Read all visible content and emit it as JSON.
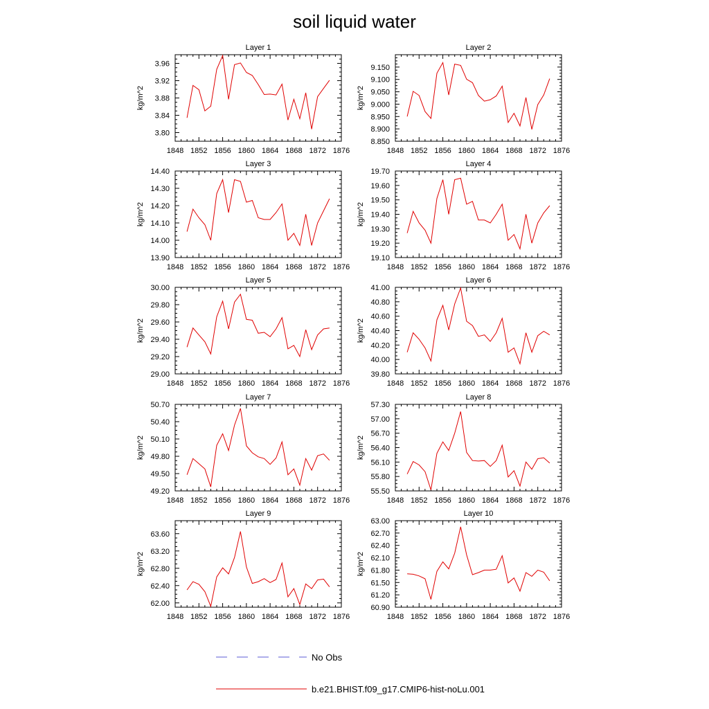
{
  "page": {
    "title": "soil liquid water"
  },
  "legend": {
    "placement": "bottom-center",
    "entries": [
      {
        "label": "No Obs",
        "color": "#5b5bd6",
        "style": "dashed"
      },
      {
        "label": "b.e21.BHIST.f09_g17.CMIP6-hist-noLu.001",
        "color": "#e00000",
        "style": "solid"
      }
    ]
  },
  "chart_data": [
    {
      "type": "line",
      "title": "Layer 1",
      "ylabel": "kg/m^2",
      "xlim": [
        1848,
        1876
      ],
      "xticks": [
        1848,
        1852,
        1856,
        1860,
        1864,
        1868,
        1872,
        1876
      ],
      "ylim": [
        3.78,
        3.98
      ],
      "yticks": [
        "3.80",
        "3.84",
        "3.88",
        "3.92",
        "3.96"
      ],
      "x": [
        1850,
        1851,
        1852,
        1853,
        1854,
        1855,
        1856,
        1857,
        1858,
        1859,
        1860,
        1861,
        1862,
        1863,
        1864,
        1865,
        1866,
        1867,
        1868,
        1869,
        1870,
        1871,
        1872,
        1873,
        1874
      ],
      "series": [
        {
          "values": [
            3.834,
            3.909,
            3.899,
            3.85,
            3.861,
            3.946,
            3.978,
            3.877,
            3.957,
            3.961,
            3.939,
            3.932,
            3.911,
            3.888,
            3.889,
            3.887,
            3.912,
            3.829,
            3.877,
            3.832,
            3.892,
            3.808,
            3.883,
            3.902,
            3.921
          ]
        }
      ]
    },
    {
      "type": "line",
      "title": "Layer 2",
      "ylabel": "kg/m^2",
      "xlim": [
        1848,
        1876
      ],
      "xticks": [
        1848,
        1852,
        1856,
        1860,
        1864,
        1868,
        1872,
        1876
      ],
      "ylim": [
        8.85,
        9.2
      ],
      "yticks": [
        "8.850",
        "8.900",
        "8.950",
        "9.000",
        "9.050",
        "9.100",
        "9.150"
      ],
      "x": [
        1850,
        1851,
        1852,
        1853,
        1854,
        1855,
        1856,
        1857,
        1858,
        1859,
        1860,
        1861,
        1862,
        1863,
        1864,
        1865,
        1866,
        1867,
        1868,
        1869,
        1870,
        1871,
        1872,
        1873,
        1874
      ],
      "series": [
        {
          "values": [
            8.95,
            9.052,
            9.035,
            8.97,
            8.942,
            9.125,
            9.168,
            9.037,
            9.162,
            9.157,
            9.101,
            9.087,
            9.035,
            9.012,
            9.018,
            9.033,
            9.073,
            8.926,
            8.963,
            8.912,
            9.027,
            8.898,
            8.998,
            9.037,
            9.103
          ]
        }
      ]
    },
    {
      "type": "line",
      "title": "Layer 3",
      "ylabel": "kg/m^2",
      "xlim": [
        1848,
        1876
      ],
      "xticks": [
        1848,
        1852,
        1856,
        1860,
        1864,
        1868,
        1872,
        1876
      ],
      "ylim": [
        13.9,
        14.4
      ],
      "yticks": [
        "13.90",
        "14.00",
        "14.10",
        "14.20",
        "14.30",
        "14.40"
      ],
      "x": [
        1850,
        1851,
        1852,
        1853,
        1854,
        1855,
        1856,
        1857,
        1858,
        1859,
        1860,
        1861,
        1862,
        1863,
        1864,
        1865,
        1866,
        1867,
        1868,
        1869,
        1870,
        1871,
        1872,
        1873,
        1874
      ],
      "series": [
        {
          "values": [
            14.05,
            14.18,
            14.13,
            14.09,
            14.0,
            14.27,
            14.35,
            14.16,
            14.35,
            14.34,
            14.22,
            14.23,
            14.13,
            14.12,
            14.12,
            14.16,
            14.21,
            14.0,
            14.04,
            13.97,
            14.15,
            13.97,
            14.1,
            14.17,
            14.24
          ]
        }
      ]
    },
    {
      "type": "line",
      "title": "Layer 4",
      "ylabel": "kg/m^2",
      "xlim": [
        1848,
        1876
      ],
      "xticks": [
        1848,
        1852,
        1856,
        1860,
        1864,
        1868,
        1872,
        1876
      ],
      "ylim": [
        19.1,
        19.7
      ],
      "yticks": [
        "19.10",
        "19.20",
        "19.30",
        "19.40",
        "19.50",
        "19.60",
        "19.70"
      ],
      "x": [
        1850,
        1851,
        1852,
        1853,
        1854,
        1855,
        1856,
        1857,
        1858,
        1859,
        1860,
        1861,
        1862,
        1863,
        1864,
        1865,
        1866,
        1867,
        1868,
        1869,
        1870,
        1871,
        1872,
        1873,
        1874
      ],
      "series": [
        {
          "values": [
            19.27,
            19.42,
            19.34,
            19.29,
            19.2,
            19.51,
            19.64,
            19.4,
            19.64,
            19.65,
            19.47,
            19.49,
            19.36,
            19.36,
            19.34,
            19.4,
            19.47,
            19.22,
            19.26,
            19.16,
            19.4,
            19.2,
            19.34,
            19.41,
            19.46
          ]
        }
      ]
    },
    {
      "type": "line",
      "title": "Layer 5",
      "ylabel": "kg/m^2",
      "xlim": [
        1848,
        1876
      ],
      "xticks": [
        1848,
        1852,
        1856,
        1860,
        1864,
        1868,
        1872,
        1876
      ],
      "ylim": [
        29.0,
        30.0
      ],
      "yticks": [
        "29.00",
        "29.20",
        "29.40",
        "29.60",
        "29.80",
        "30.00"
      ],
      "x": [
        1850,
        1851,
        1852,
        1853,
        1854,
        1855,
        1856,
        1857,
        1858,
        1859,
        1860,
        1861,
        1862,
        1863,
        1864,
        1865,
        1866,
        1867,
        1868,
        1869,
        1870,
        1871,
        1872,
        1873,
        1874
      ],
      "series": [
        {
          "values": [
            29.31,
            29.53,
            29.45,
            29.37,
            29.23,
            29.66,
            29.84,
            29.52,
            29.83,
            29.92,
            29.63,
            29.62,
            29.47,
            29.48,
            29.43,
            29.52,
            29.65,
            29.29,
            29.33,
            29.2,
            29.51,
            29.28,
            29.45,
            29.52,
            29.53
          ]
        }
      ]
    },
    {
      "type": "line",
      "title": "Layer 6",
      "ylabel": "kg/m^2",
      "xlim": [
        1848,
        1876
      ],
      "xticks": [
        1848,
        1852,
        1856,
        1860,
        1864,
        1868,
        1872,
        1876
      ],
      "ylim": [
        39.8,
        41.0
      ],
      "yticks": [
        "39.80",
        "40.00",
        "40.20",
        "40.40",
        "40.60",
        "40.80",
        "41.00"
      ],
      "x": [
        1850,
        1851,
        1852,
        1853,
        1854,
        1855,
        1856,
        1857,
        1858,
        1859,
        1860,
        1861,
        1862,
        1863,
        1864,
        1865,
        1866,
        1867,
        1868,
        1869,
        1870,
        1871,
        1872,
        1873,
        1874
      ],
      "series": [
        {
          "values": [
            40.1,
            40.37,
            40.28,
            40.16,
            39.98,
            40.55,
            40.75,
            40.41,
            40.77,
            40.99,
            40.53,
            40.47,
            40.32,
            40.34,
            40.25,
            40.37,
            40.57,
            40.1,
            40.16,
            39.94,
            40.37,
            40.1,
            40.33,
            40.39,
            40.34
          ]
        }
      ]
    },
    {
      "type": "line",
      "title": "Layer 7",
      "ylabel": "kg/m^2",
      "xlim": [
        1848,
        1876
      ],
      "xticks": [
        1848,
        1852,
        1856,
        1860,
        1864,
        1868,
        1872,
        1876
      ],
      "ylim": [
        49.2,
        50.7
      ],
      "yticks": [
        "49.20",
        "49.50",
        "49.80",
        "50.10",
        "50.40",
        "50.70"
      ],
      "x": [
        1850,
        1851,
        1852,
        1853,
        1854,
        1855,
        1856,
        1857,
        1858,
        1859,
        1860,
        1861,
        1862,
        1863,
        1864,
        1865,
        1866,
        1867,
        1868,
        1869,
        1870,
        1871,
        1872,
        1873,
        1874
      ],
      "series": [
        {
          "values": [
            49.48,
            49.76,
            49.67,
            49.58,
            49.27,
            49.99,
            50.19,
            49.9,
            50.34,
            50.63,
            49.98,
            49.86,
            49.79,
            49.76,
            49.66,
            49.77,
            50.05,
            49.48,
            49.58,
            49.3,
            49.76,
            49.56,
            49.81,
            49.84,
            49.73
          ]
        }
      ]
    },
    {
      "type": "line",
      "title": "Layer 8",
      "ylabel": "kg/m^2",
      "xlim": [
        1848,
        1876
      ],
      "xticks": [
        1848,
        1852,
        1856,
        1860,
        1864,
        1868,
        1872,
        1876
      ],
      "ylim": [
        55.5,
        57.3
      ],
      "yticks": [
        "55.50",
        "55.80",
        "56.10",
        "56.40",
        "56.70",
        "57.00",
        "57.30"
      ],
      "x": [
        1850,
        1851,
        1852,
        1853,
        1854,
        1855,
        1856,
        1857,
        1858,
        1859,
        1860,
        1861,
        1862,
        1863,
        1864,
        1865,
        1866,
        1867,
        1868,
        1869,
        1870,
        1871,
        1872,
        1873,
        1874
      ],
      "series": [
        {
          "values": [
            55.85,
            56.11,
            56.04,
            55.9,
            55.52,
            56.28,
            56.52,
            56.34,
            56.7,
            57.15,
            56.3,
            56.13,
            56.12,
            56.13,
            56.01,
            56.13,
            56.45,
            55.79,
            55.92,
            55.6,
            56.1,
            55.95,
            56.17,
            56.19,
            56.08
          ]
        }
      ]
    },
    {
      "type": "line",
      "title": "Layer 9",
      "ylabel": "kg/m^2",
      "xlim": [
        1848,
        1876
      ],
      "xticks": [
        1848,
        1852,
        1856,
        1860,
        1864,
        1868,
        1872,
        1876
      ],
      "ylim": [
        61.9,
        63.9
      ],
      "yticks": [
        "62.00",
        "62.40",
        "62.80",
        "63.20",
        "63.60"
      ],
      "x": [
        1850,
        1851,
        1852,
        1853,
        1854,
        1855,
        1856,
        1857,
        1858,
        1859,
        1860,
        1861,
        1862,
        1863,
        1864,
        1865,
        1866,
        1867,
        1868,
        1869,
        1870,
        1871,
        1872,
        1873,
        1874
      ],
      "series": [
        {
          "values": [
            62.3,
            62.49,
            62.43,
            62.26,
            61.92,
            62.6,
            62.81,
            62.67,
            63.05,
            63.65,
            62.83,
            62.45,
            62.49,
            62.56,
            62.47,
            62.54,
            62.92,
            62.14,
            62.33,
            61.96,
            62.44,
            62.33,
            62.53,
            62.55,
            62.37
          ]
        }
      ]
    },
    {
      "type": "line",
      "title": "Layer 10",
      "ylabel": "kg/m^2",
      "xlim": [
        1848,
        1876
      ],
      "xticks": [
        1848,
        1852,
        1856,
        1860,
        1864,
        1868,
        1872,
        1876
      ],
      "ylim": [
        60.9,
        63.0
      ],
      "yticks": [
        "60.90",
        "61.20",
        "61.50",
        "61.80",
        "62.10",
        "62.40",
        "62.70",
        "63.00"
      ],
      "x": [
        1850,
        1851,
        1852,
        1853,
        1854,
        1855,
        1856,
        1857,
        1858,
        1859,
        1860,
        1861,
        1862,
        1863,
        1864,
        1865,
        1866,
        1867,
        1868,
        1869,
        1870,
        1871,
        1872,
        1873,
        1874
      ],
      "series": [
        {
          "values": [
            61.71,
            61.7,
            61.66,
            61.59,
            61.09,
            61.77,
            62.0,
            61.83,
            62.21,
            62.85,
            62.17,
            61.69,
            61.74,
            61.8,
            61.8,
            61.82,
            62.15,
            61.49,
            61.61,
            61.29,
            61.74,
            61.65,
            61.8,
            61.75,
            61.54
          ]
        }
      ]
    }
  ]
}
